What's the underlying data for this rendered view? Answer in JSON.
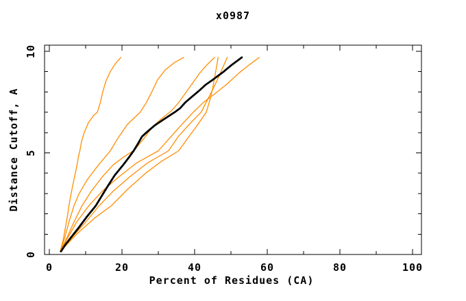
{
  "window": {
    "background": "#ffffff"
  },
  "chart_data": {
    "type": "line",
    "title": "x0987",
    "xlabel": "Percent of Residues (CA)",
    "ylabel": "Distance Cutoff, A",
    "xlim": [
      0,
      100
    ],
    "ylim": [
      0,
      10
    ],
    "grid": false,
    "legend": "none",
    "axis_color": "#000000",
    "xticks": {
      "major": [
        0,
        20,
        40,
        60,
        80,
        100
      ],
      "major_labels": [
        "0",
        "20",
        "40",
        "60",
        "80",
        "100"
      ],
      "minor": [
        10,
        30,
        50,
        70,
        90
      ]
    },
    "yticks": {
      "major": [
        0,
        5,
        10
      ],
      "major_labels": [
        "0",
        "5",
        "10"
      ],
      "minor": [
        1,
        2,
        3,
        4,
        6,
        7,
        8,
        9
      ]
    },
    "series": [
      {
        "role": "model",
        "color": "#ff8c00",
        "width": 1.3,
        "points": [
          [
            3,
            0.15
          ],
          [
            3.8,
            0.7
          ],
          [
            4.4,
            1.3
          ],
          [
            5,
            1.9
          ],
          [
            5.4,
            2.4
          ],
          [
            6,
            3.0
          ],
          [
            6.8,
            3.7
          ],
          [
            7.5,
            4.3
          ],
          [
            8,
            4.8
          ],
          [
            8.4,
            5.1
          ],
          [
            8.9,
            5.6
          ],
          [
            9.6,
            6.0
          ],
          [
            10.8,
            6.5
          ],
          [
            12.2,
            6.85
          ],
          [
            13.2,
            7.0
          ],
          [
            14,
            7.45
          ],
          [
            14.7,
            8.0
          ],
          [
            15.6,
            8.55
          ],
          [
            16.8,
            9.0
          ],
          [
            18.2,
            9.4
          ],
          [
            19.7,
            9.7
          ]
        ]
      },
      {
        "role": "model",
        "color": "#ff8c00",
        "width": 1.3,
        "points": [
          [
            3,
            0.15
          ],
          [
            4.2,
            0.8
          ],
          [
            5.4,
            1.6
          ],
          [
            6.8,
            2.4
          ],
          [
            8.2,
            3.0
          ],
          [
            10.5,
            3.7
          ],
          [
            13.5,
            4.4
          ],
          [
            16.8,
            5.1
          ],
          [
            18.8,
            5.7
          ],
          [
            21.5,
            6.4
          ],
          [
            25,
            7.0
          ],
          [
            26.8,
            7.5
          ],
          [
            28.2,
            8.0
          ],
          [
            29.8,
            8.6
          ],
          [
            32,
            9.1
          ],
          [
            34.5,
            9.45
          ],
          [
            37,
            9.7
          ]
        ]
      },
      {
        "role": "model",
        "color": "#ff8c00",
        "width": 1.3,
        "points": [
          [
            3,
            0.15
          ],
          [
            4.8,
            0.8
          ],
          [
            6.8,
            1.6
          ],
          [
            9,
            2.4
          ],
          [
            11.5,
            3.1
          ],
          [
            14.5,
            3.8
          ],
          [
            17.5,
            4.4
          ],
          [
            20.5,
            4.8
          ],
          [
            23.5,
            5.15
          ],
          [
            26,
            5.7
          ],
          [
            28.5,
            6.3
          ],
          [
            31,
            6.7
          ],
          [
            33.5,
            7.05
          ],
          [
            35.5,
            7.45
          ],
          [
            37.5,
            7.95
          ],
          [
            39.5,
            8.45
          ],
          [
            41.5,
            8.95
          ],
          [
            43.5,
            9.35
          ],
          [
            45.5,
            9.7
          ]
        ]
      },
      {
        "role": "model",
        "color": "#ff8c00",
        "width": 1.3,
        "points": [
          [
            3,
            0.15
          ],
          [
            7.5,
            1.0
          ],
          [
            12.5,
            1.8
          ],
          [
            17.1,
            2.4
          ],
          [
            21.5,
            3.2
          ],
          [
            26.5,
            4.0
          ],
          [
            31,
            4.6
          ],
          [
            35.6,
            5.1
          ],
          [
            38,
            5.7
          ],
          [
            40.5,
            6.3
          ],
          [
            43.2,
            7.0
          ],
          [
            44.2,
            7.6
          ],
          [
            45,
            8.2
          ],
          [
            45.6,
            8.8
          ],
          [
            46.1,
            9.3
          ],
          [
            46.5,
            9.7
          ]
        ]
      },
      {
        "role": "model",
        "color": "#ff8c00",
        "width": 1.3,
        "points": [
          [
            3,
            0.15
          ],
          [
            6.8,
            0.95
          ],
          [
            10.5,
            1.7
          ],
          [
            13.7,
            2.4
          ],
          [
            17.5,
            3.1
          ],
          [
            22,
            3.8
          ],
          [
            27,
            4.5
          ],
          [
            32.8,
            5.1
          ],
          [
            35.5,
            5.8
          ],
          [
            38.5,
            6.4
          ],
          [
            41.8,
            7.0
          ],
          [
            43.5,
            7.6
          ],
          [
            45.2,
            8.2
          ],
          [
            46.8,
            8.8
          ],
          [
            48,
            9.3
          ],
          [
            49,
            9.7
          ]
        ]
      },
      {
        "role": "model",
        "color": "#ff8c00",
        "width": 1.3,
        "points": [
          [
            3,
            0.15
          ],
          [
            5,
            0.8
          ],
          [
            7.5,
            1.6
          ],
          [
            10.9,
            2.4
          ],
          [
            14.5,
            3.1
          ],
          [
            19,
            3.8
          ],
          [
            24,
            4.5
          ],
          [
            30,
            5.1
          ],
          [
            33.5,
            5.8
          ],
          [
            36.5,
            6.4
          ],
          [
            39.6,
            7.0
          ],
          [
            42.5,
            7.5
          ],
          [
            45.5,
            7.9
          ],
          [
            49,
            8.4
          ],
          [
            52,
            8.9
          ],
          [
            54.8,
            9.3
          ],
          [
            57.8,
            9.7
          ]
        ]
      },
      {
        "role": "reference",
        "color": "#000000",
        "width": 2.8,
        "points": [
          [
            3.2,
            0.15
          ],
          [
            4.5,
            0.5
          ],
          [
            6,
            0.85
          ],
          [
            8,
            1.3
          ],
          [
            10.5,
            1.9
          ],
          [
            12.8,
            2.4
          ],
          [
            14.5,
            2.9
          ],
          [
            16.2,
            3.4
          ],
          [
            18,
            3.9
          ],
          [
            20.3,
            4.4
          ],
          [
            21.8,
            4.75
          ],
          [
            23.2,
            5.1
          ],
          [
            24.4,
            5.45
          ],
          [
            25.5,
            5.8
          ],
          [
            27,
            6.05
          ],
          [
            29,
            6.35
          ],
          [
            31.5,
            6.65
          ],
          [
            34.5,
            7.0
          ],
          [
            36,
            7.2
          ],
          [
            37.5,
            7.5
          ],
          [
            39.5,
            7.8
          ],
          [
            41.5,
            8.1
          ],
          [
            43,
            8.35
          ],
          [
            45,
            8.6
          ],
          [
            46.5,
            8.8
          ],
          [
            48,
            9.0
          ],
          [
            50,
            9.3
          ],
          [
            51.5,
            9.5
          ],
          [
            53,
            9.7
          ]
        ]
      }
    ]
  }
}
